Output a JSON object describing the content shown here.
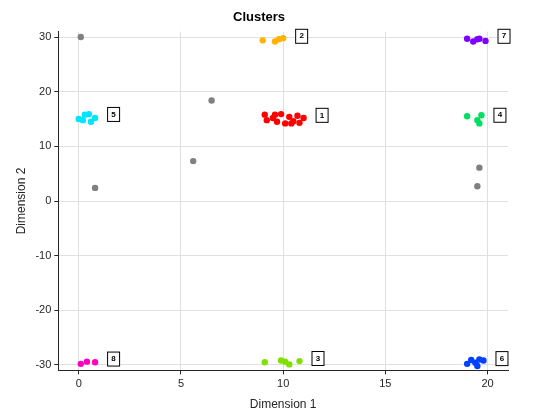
{
  "chart_data": {
    "type": "scatter",
    "title": "Clusters",
    "x_label": "Dimension 1",
    "y_label": "Dimension 2",
    "xlim": [
      -1,
      21
    ],
    "xticks": [
      0,
      5,
      10,
      15,
      20
    ],
    "ylim": [
      -31,
      31
    ],
    "yticks": [
      -30,
      -20,
      -10,
      0,
      10,
      20,
      30
    ],
    "grid": true,
    "marker": "circle",
    "series": [
      {
        "name": "1",
        "color": "#ff0000",
        "x": [
          9.1,
          9.2,
          9.5,
          9.7,
          9.9,
          10.1,
          10.3,
          10.5,
          10.7,
          10.8,
          11.0,
          9.6,
          10.4
        ],
        "values": [
          15.8,
          14.8,
          15.2,
          14.5,
          15.9,
          14.2,
          15.4,
          14.6,
          15.6,
          14.3,
          15.2,
          15.8,
          14.2
        ]
      },
      {
        "name": "2",
        "color": "#ffb300",
        "x": [
          9.0,
          9.6,
          9.8,
          10.0
        ],
        "values": [
          29.4,
          29.2,
          29.6,
          29.8
        ]
      },
      {
        "name": "3",
        "color": "#80e000",
        "x": [
          9.1,
          9.9,
          10.1,
          10.3,
          10.8
        ],
        "values": [
          -29.5,
          -29.2,
          -29.4,
          -29.9,
          -29.3
        ]
      },
      {
        "name": "4",
        "color": "#00e060",
        "x": [
          19.0,
          19.5,
          19.6,
          19.7
        ],
        "values": [
          15.5,
          14.8,
          14.2,
          15.7
        ]
      },
      {
        "name": "5",
        "color": "#00e5ff",
        "x": [
          0.0,
          0.2,
          0.3,
          0.5,
          0.6,
          0.8
        ],
        "values": [
          15.0,
          14.8,
          15.8,
          15.9,
          14.5,
          15.2
        ]
      },
      {
        "name": "6",
        "color": "#0040ff",
        "x": [
          19.0,
          19.2,
          19.4,
          19.6,
          19.8,
          19.5
        ],
        "values": [
          -29.8,
          -29.1,
          -29.6,
          -29.0,
          -29.2,
          -30.2
        ]
      },
      {
        "name": "7",
        "color": "#8000ff",
        "x": [
          19.0,
          19.3,
          19.6,
          19.9,
          19.5
        ],
        "values": [
          29.7,
          29.2,
          29.7,
          29.3,
          29.6
        ]
      },
      {
        "name": "8",
        "color": "#ff00c0",
        "x": [
          0.1,
          0.4,
          0.8
        ],
        "values": [
          -29.8,
          -29.4,
          -29.5
        ]
      },
      {
        "color": "#808080",
        "x": [
          0.1,
          6.5,
          5.6,
          0.8,
          19.6,
          19.5
        ],
        "values": [
          30.0,
          18.4,
          7.3,
          2.4,
          6.1,
          2.7
        ]
      }
    ]
  }
}
